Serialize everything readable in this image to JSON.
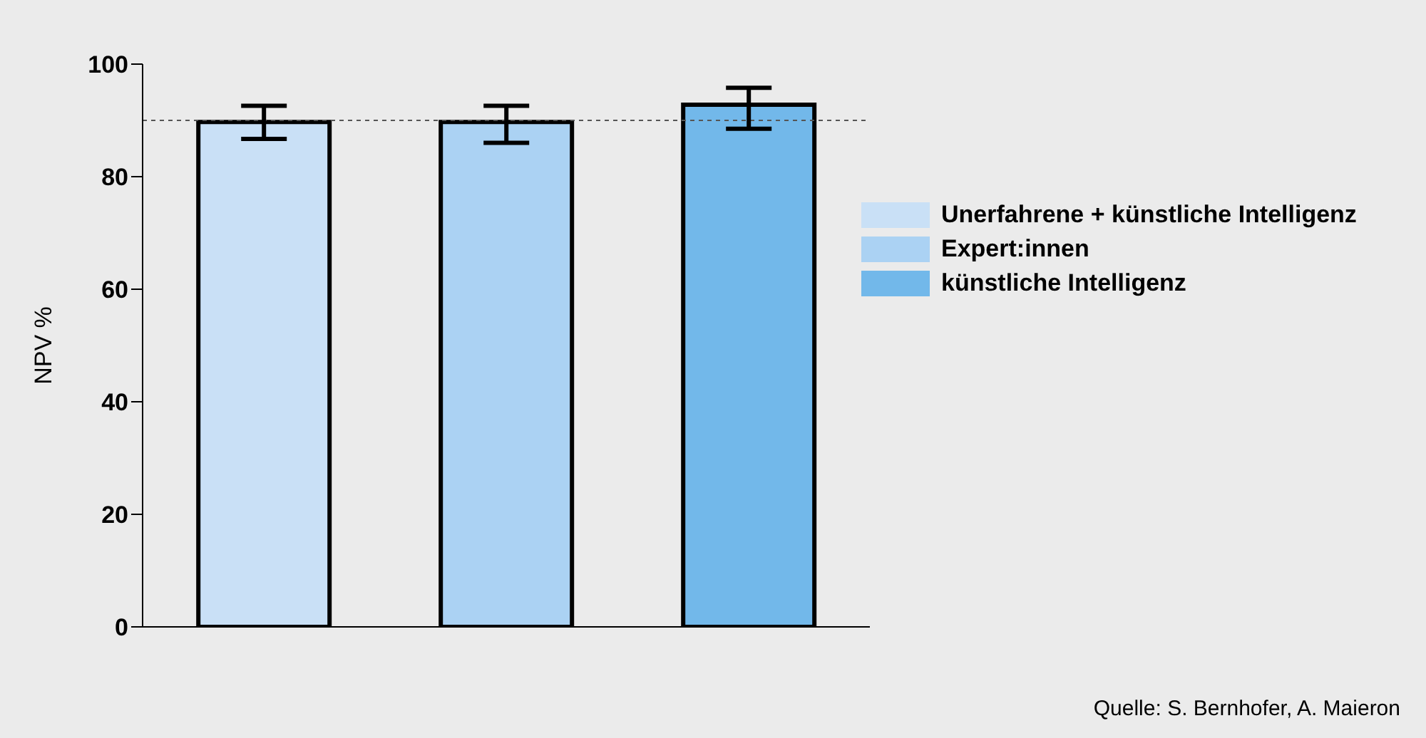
{
  "chart_data": {
    "type": "bar",
    "ylabel": "NPV %",
    "categories": [
      null,
      null,
      null
    ],
    "series": [
      {
        "name": "Unerfahrene + künstliche Intelligenz",
        "color": "#c9e0f6",
        "values": [
          89.7,
          null,
          null
        ],
        "errors": [
          [
            86.7,
            92.6
          ],
          null,
          null
        ]
      },
      {
        "name": "Expert:innen",
        "color": "#abd2f3",
        "values": [
          null,
          89.7,
          null
        ],
        "errors": [
          null,
          [
            86.0,
            92.6
          ],
          null
        ]
      },
      {
        "name": "künstliche Intelligenz",
        "color": "#72b8ea",
        "values": [
          null,
          null,
          92.8
        ],
        "errors": [
          null,
          null,
          [
            88.5,
            95.8
          ]
        ]
      }
    ],
    "ylim": [
      0,
      100
    ],
    "yticks": [
      0,
      20,
      40,
      60,
      80,
      100
    ],
    "grid": false,
    "legend": "right",
    "ref_lines": [
      {
        "axis": "y",
        "value": 90,
        "line_style": "dashed",
        "color": "#555555"
      }
    ],
    "annotations": [
      "Quelle: S. Bernhofer, A. Maieron"
    ]
  }
}
